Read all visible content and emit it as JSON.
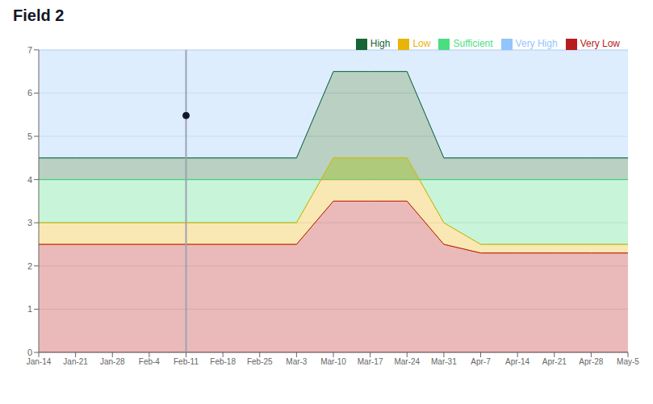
{
  "chart_data": {
    "type": "area",
    "title": "Field 2",
    "categories": [
      "Jan-14",
      "Jan-21",
      "Jan-28",
      "Feb-4",
      "Feb-11",
      "Feb-18",
      "Feb-25",
      "Mar-3",
      "Mar-10",
      "Mar-17",
      "Mar-24",
      "Mar-31",
      "Apr-7",
      "Apr-14",
      "Apr-21",
      "Apr-28",
      "May-5"
    ],
    "series": [
      {
        "name": "Very High",
        "color": "#93c5fd",
        "values": [
          4.5,
          4.5,
          4.5,
          4.5,
          4.5,
          4.5,
          4.5,
          4.5,
          6.5,
          6.5,
          6.5,
          4.5,
          4.5,
          4.5,
          4.5,
          4.5,
          4.5
        ],
        "upper": [
          7.0,
          7.0,
          7.0,
          7.0,
          7.0,
          7.0,
          7.0,
          7.0,
          7.0,
          7.0,
          7.0,
          7.0,
          7.0,
          7.0,
          7.0,
          7.0,
          7.0
        ]
      },
      {
        "name": "High",
        "color": "#166534",
        "values": [
          4.0,
          4.0,
          4.0,
          4.0,
          4.0,
          4.0,
          4.0,
          4.0,
          4.0,
          4.0,
          4.0,
          4.0,
          4.0,
          4.0,
          4.0,
          4.0,
          4.0
        ],
        "upper": [
          4.5,
          4.5,
          4.5,
          4.5,
          4.5,
          4.5,
          4.5,
          4.5,
          6.5,
          6.5,
          6.5,
          4.5,
          4.5,
          4.5,
          4.5,
          4.5,
          4.5
        ]
      },
      {
        "name": "Sufficient",
        "color": "#4ade80",
        "values": [
          3.0,
          3.0,
          3.0,
          3.0,
          3.0,
          3.0,
          3.0,
          3.0,
          4.5,
          4.5,
          4.5,
          3.0,
          2.5,
          2.5,
          2.5,
          2.5,
          2.5
        ],
        "upper": [
          4.0,
          4.0,
          4.0,
          4.0,
          4.0,
          4.0,
          4.0,
          4.0,
          4.0,
          4.0,
          4.0,
          4.0,
          4.0,
          4.0,
          4.0,
          4.0,
          4.0
        ]
      },
      {
        "name": "Low",
        "color": "#eab308",
        "values": [
          2.5,
          2.5,
          2.5,
          2.5,
          2.5,
          2.5,
          2.5,
          2.5,
          3.5,
          3.5,
          3.5,
          2.5,
          2.3,
          2.3,
          2.3,
          2.3,
          2.3
        ],
        "upper": [
          3.0,
          3.0,
          3.0,
          3.0,
          3.0,
          3.0,
          3.0,
          3.0,
          4.5,
          4.5,
          4.5,
          3.0,
          2.5,
          2.5,
          2.5,
          2.5,
          2.5
        ]
      },
      {
        "name": "Very Low",
        "color": "#b91c1c",
        "values": [
          0.0,
          0.0,
          0.0,
          0.0,
          0.0,
          0.0,
          0.0,
          0.0,
          0.0,
          0.0,
          0.0,
          0.0,
          0.0,
          0.0,
          0.0,
          0.0,
          0.0
        ],
        "upper": [
          2.5,
          2.5,
          2.5,
          2.5,
          2.5,
          2.5,
          2.5,
          2.5,
          3.5,
          3.5,
          3.5,
          2.5,
          2.3,
          2.3,
          2.3,
          2.3,
          2.3
        ]
      }
    ],
    "vline_x": "Feb-11",
    "point": {
      "x": "Feb-11",
      "y": 5.48
    },
    "ylim": [
      0,
      7
    ],
    "yticks": [
      0,
      1,
      2,
      3,
      4,
      5,
      6,
      7
    ],
    "grid": true,
    "legend": "upper right"
  }
}
